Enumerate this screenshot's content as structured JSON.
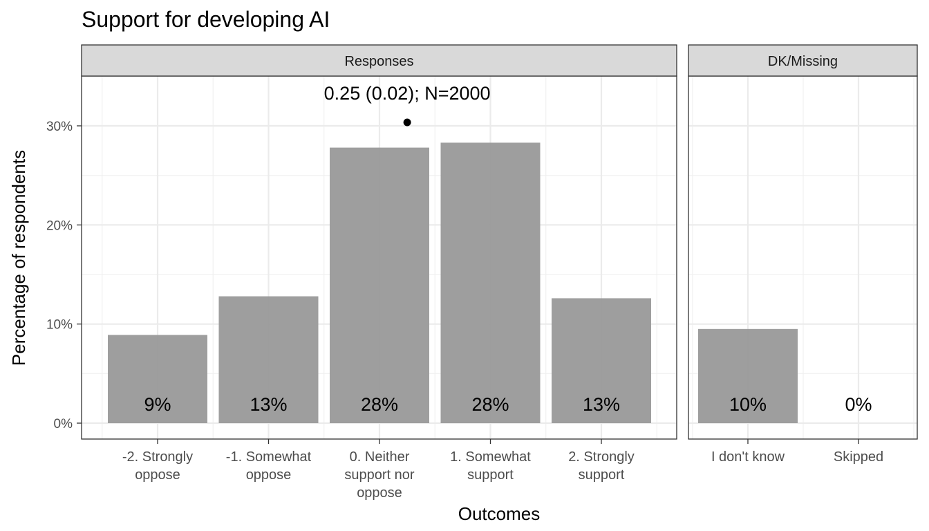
{
  "chart_data": {
    "type": "bar",
    "title": "Support for developing AI",
    "xlabel": "Outcomes",
    "ylabel": "Percentage of respondents",
    "ylim": [
      0,
      0.3
    ],
    "y_ticks": [
      "0%",
      "10%",
      "20%",
      "30%"
    ],
    "y_tick_values": [
      0,
      0.1,
      0.2,
      0.3
    ],
    "grid": true,
    "panels": [
      {
        "name": "Responses",
        "categories": [
          [
            "-2. Strongly",
            "oppose"
          ],
          [
            "-1. Somewhat",
            "oppose"
          ],
          [
            "0. Neither",
            "support nor",
            "oppose"
          ],
          [
            "1. Somewhat",
            "support"
          ],
          [
            "2. Strongly",
            "support"
          ]
        ],
        "values": [
          0.089,
          0.128,
          0.278,
          0.283,
          0.126
        ],
        "labels": [
          "9%",
          "13%",
          "28%",
          "28%",
          "13%"
        ],
        "annotation": {
          "text": "0.25 (0.02); N=2000",
          "mean": 0.25,
          "se": 0.02
        }
      },
      {
        "name": "DK/Missing",
        "categories": [
          [
            "I don't know"
          ],
          [
            "Skipped"
          ]
        ],
        "values": [
          0.095,
          0.0
        ],
        "labels": [
          "10%",
          "0%"
        ]
      }
    ]
  }
}
